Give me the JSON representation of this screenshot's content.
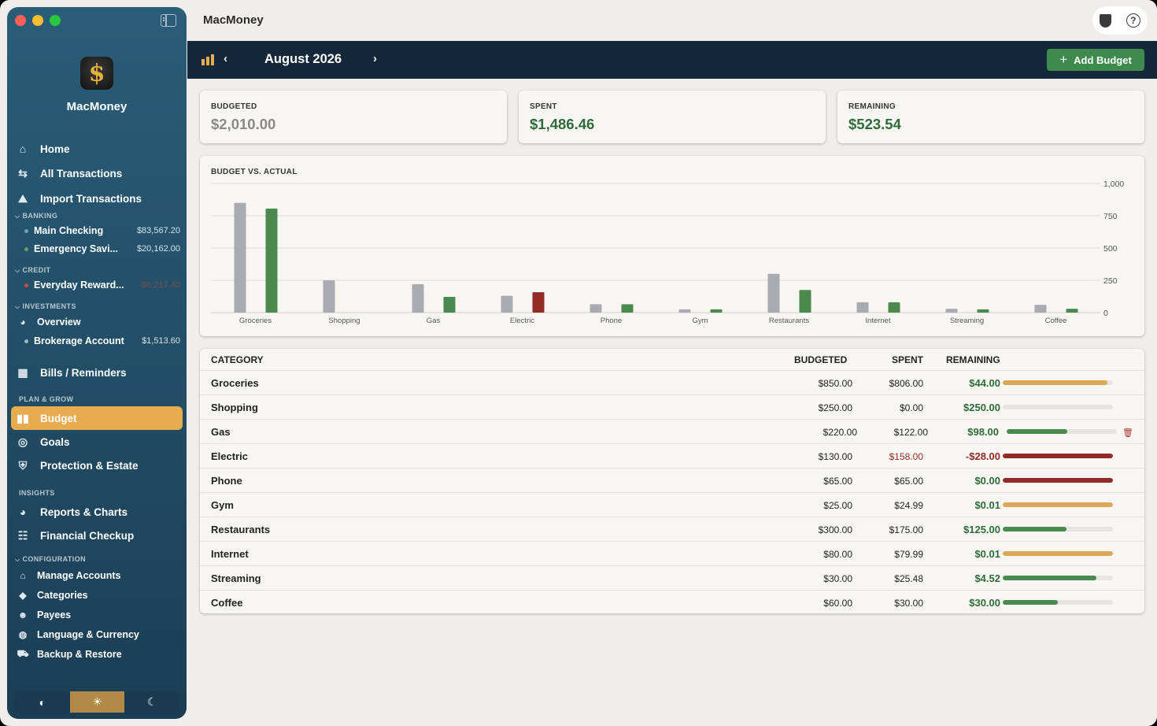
{
  "window": {
    "title": "MacMoney"
  },
  "sidebar": {
    "app_name": "MacMoney",
    "logo_glyph": "$",
    "nav": [
      {
        "label": "Home",
        "icon": "house-icon"
      },
      {
        "label": "All Transactions",
        "icon": "arrows-icon"
      },
      {
        "label": "Import Transactions",
        "icon": "import-icon"
      }
    ],
    "banking": {
      "title": "BANKING",
      "accounts": [
        {
          "name": "Main Checking",
          "balance": "$83,567.20",
          "dot": "#5fa4c4"
        },
        {
          "name": "Emergency Savi...",
          "balance": "$20,162.00",
          "dot": "#58a45c"
        }
      ]
    },
    "credit": {
      "title": "CREDIT",
      "accounts": [
        {
          "name": "Everyday Reward...",
          "balance": "-$6,217.40",
          "dot": "#d04a3c"
        }
      ]
    },
    "investments": {
      "title": "INVESTMENTS",
      "overview": "Overview",
      "accounts": [
        {
          "name": "Brokerage Account",
          "balance": "$1,513.60",
          "dot": "#9fb3c0"
        }
      ]
    },
    "bills": "Bills / Reminders",
    "plan_title": "PLAN & GROW",
    "plan": [
      "Budget",
      "Goals",
      "Protection & Estate"
    ],
    "insights_title": "INSIGHTS",
    "insights": [
      "Reports & Charts",
      "Financial Checkup"
    ],
    "config_title": "CONFIGURATION",
    "config": [
      "Manage Accounts",
      "Categories",
      "Payees",
      "Language & Currency",
      "Backup & Restore"
    ],
    "theme": [
      "◐",
      "☀",
      "☾"
    ]
  },
  "toolbar": {
    "month": "August 2026",
    "add_label": "Add Budget",
    "prev": "‹",
    "next": "›"
  },
  "summary": {
    "budgeted": {
      "label": "BUDGETED",
      "value": "$2,010.00",
      "color": "#8a8a8a"
    },
    "spent": {
      "label": "SPENT",
      "value": "$1,486.46",
      "color": "#2f6b3a"
    },
    "remaining": {
      "label": "REMAINING",
      "value": "$523.54",
      "color": "#2f6b3a"
    }
  },
  "chart_data": {
    "type": "bar",
    "title": "BUDGET VS. ACTUAL",
    "categories": [
      "Groceries",
      "Shopping",
      "Gas",
      "Electric",
      "Phone",
      "Gym",
      "Restaurants",
      "Internet",
      "Streaming",
      "Coffee"
    ],
    "series": [
      {
        "values": [
          850,
          250,
          220,
          130,
          65,
          25,
          300,
          80,
          30,
          60
        ],
        "color": "#a9abb0"
      },
      {
        "values": [
          806,
          0,
          122,
          158,
          65,
          24.99,
          175,
          79.99,
          25.48,
          30
        ],
        "color": "#4a8a4e",
        "over_color": "#922b25"
      }
    ],
    "yticks": [
      0,
      250,
      500,
      750,
      1000
    ],
    "ytick_labels": [
      "0",
      "250",
      "500",
      "750",
      "1,000"
    ],
    "ylim": [
      0,
      1000
    ],
    "grid": true,
    "legend": "none"
  },
  "table": {
    "headers": {
      "category": "CATEGORY",
      "budgeted": "BUDGETED",
      "spent": "SPENT",
      "remaining": "REMAINING"
    },
    "rows": [
      {
        "category": "Groceries",
        "budgeted": "$850.00",
        "spent": "$806.00",
        "remaining": "$44.00",
        "progress": 0.95,
        "status": "warn"
      },
      {
        "category": "Shopping",
        "budgeted": "$250.00",
        "spent": "$0.00",
        "remaining": "$250.00",
        "progress": 0,
        "status": "ok"
      },
      {
        "category": "Gas",
        "budgeted": "$220.00",
        "spent": "$122.00",
        "remaining": "$98.00",
        "progress": 0.55,
        "status": "ok"
      },
      {
        "category": "Electric",
        "budgeted": "$130.00",
        "spent": "$158.00",
        "remaining": "-$28.00",
        "progress": 1,
        "status": "over"
      },
      {
        "category": "Phone",
        "budgeted": "$65.00",
        "spent": "$65.00",
        "remaining": "$0.00",
        "progress": 1,
        "status": "over"
      },
      {
        "category": "Gym",
        "budgeted": "$25.00",
        "spent": "$24.99",
        "remaining": "$0.01",
        "progress": 1,
        "status": "warn"
      },
      {
        "category": "Restaurants",
        "budgeted": "$300.00",
        "spent": "$175.00",
        "remaining": "$125.00",
        "progress": 0.58,
        "status": "ok"
      },
      {
        "category": "Internet",
        "budgeted": "$80.00",
        "spent": "$79.99",
        "remaining": "$0.01",
        "progress": 1,
        "status": "warn"
      },
      {
        "category": "Streaming",
        "budgeted": "$30.00",
        "spent": "$25.48",
        "remaining": "$4.52",
        "progress": 0.85,
        "status": "ok"
      },
      {
        "category": "Coffee",
        "budgeted": "$60.00",
        "spent": "$30.00",
        "remaining": "$30.00",
        "progress": 0.5,
        "status": "ok"
      }
    ],
    "status_colors": {
      "ok": "#4a8a4e",
      "warn": "#d9a957",
      "over": "#922b25"
    },
    "remaining_colors": {
      "positive": "#2f6b3a",
      "negative": "#922b25"
    },
    "spent_over_color": "#922b25"
  },
  "colors": {
    "accent": "#e7ab50",
    "brand_dark": "#14283a",
    "add_button": "#3e8a4c"
  }
}
